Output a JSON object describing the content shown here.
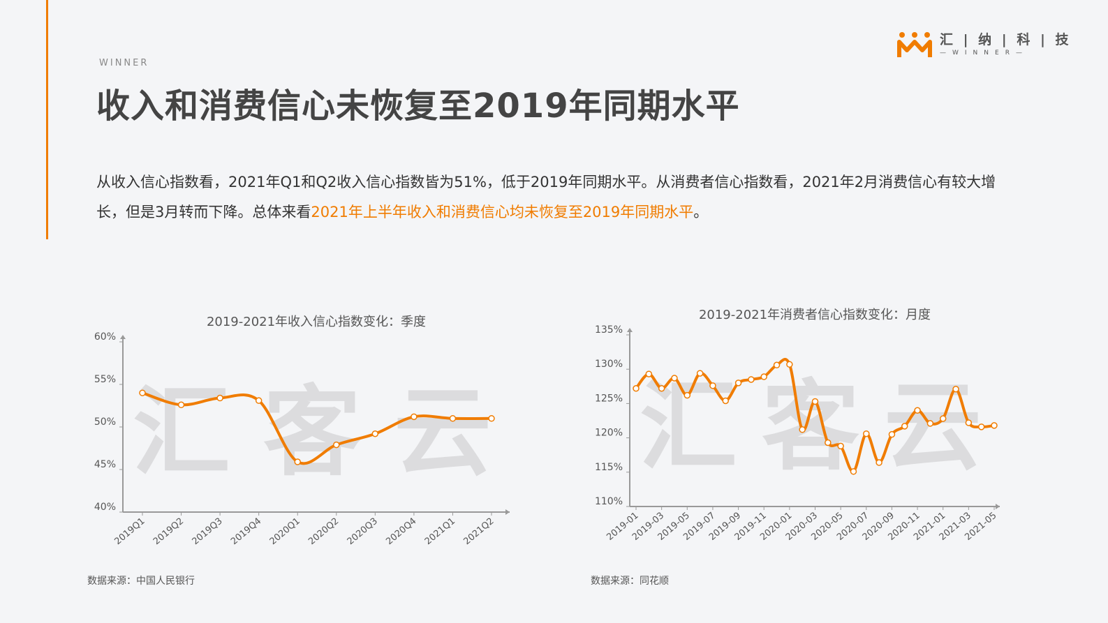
{
  "header": {
    "tag": "WINNER",
    "title": "收入和消费信心未恢复至2019年同期水平"
  },
  "logo": {
    "name": "汇 | 纳 | 科 | 技",
    "sub": "—WINNER—",
    "color": "#f07c00"
  },
  "description": {
    "text1": "从收入信心指数看，2021年Q1和Q2收入信心指数皆为51%，低于2019年同期水平。从消费者信心指数看，2021年2月消费信心有较大增长，但是3月转而下降。总体来看",
    "highlight": "2021年上半年收入和消费信心均未恢复至2019年同期水平",
    "text2": "。"
  },
  "watermark": "汇客云",
  "chart_data": [
    {
      "type": "line",
      "title": "2019-2021年收入信心指数变化：季度",
      "categories": [
        "2019Q1",
        "2019Q2",
        "2019Q3",
        "2019Q4",
        "2020Q1",
        "2020Q2",
        "2020Q3",
        "2020Q4",
        "2021Q1",
        "2021Q2"
      ],
      "values": [
        54.0,
        52.6,
        53.4,
        53.1,
        45.9,
        47.9,
        49.2,
        51.2,
        51.0,
        51.0
      ],
      "ylim": [
        40,
        60
      ],
      "yticks": [
        "40%",
        "45%",
        "50%",
        "55%",
        "60%"
      ],
      "grid": false,
      "color": "#f07c00",
      "source": "数据来源：中国人民银行"
    },
    {
      "type": "line",
      "title": "2019-2021年消费者信心指数变化：月度",
      "categories": [
        "2019-01",
        "2019-02",
        "2019-03",
        "2019-04",
        "2019-05",
        "2019-06",
        "2019-07",
        "2019-08",
        "2019-09",
        "2019-10",
        "2019-11",
        "2019-12",
        "2020-01",
        "2020-02",
        "2020-03",
        "2020-04",
        "2020-05",
        "2020-06",
        "2020-07",
        "2020-08",
        "2020-09",
        "2020-10",
        "2020-11",
        "2020-12",
        "2021-01",
        "2021-02",
        "2021-03",
        "2021-04",
        "2021-05"
      ],
      "tick_labels": [
        "2019-01",
        "2019-03",
        "2019-05",
        "2019-07",
        "2019-09",
        "2019-11",
        "2020-01",
        "2020-03",
        "2020-05",
        "2020-07",
        "2020-09",
        "2020-11",
        "2021-01",
        "2021-03",
        "2021-05"
      ],
      "values": [
        127.2,
        129.3,
        127.2,
        128.7,
        126.2,
        129.4,
        127.6,
        125.4,
        128.0,
        128.5,
        128.9,
        130.6,
        130.7,
        121.2,
        125.3,
        119.3,
        118.8,
        115.1,
        120.6,
        116.4,
        120.5,
        121.7,
        124.0,
        122.1,
        122.8,
        127.1,
        122.2,
        121.6,
        121.8
      ],
      "ylim": [
        110,
        135
      ],
      "yticks": [
        "110%",
        "115%",
        "120%",
        "125%",
        "130%",
        "135%"
      ],
      "grid": false,
      "color": "#f07c00",
      "source": "数据来源：同花顺"
    }
  ]
}
